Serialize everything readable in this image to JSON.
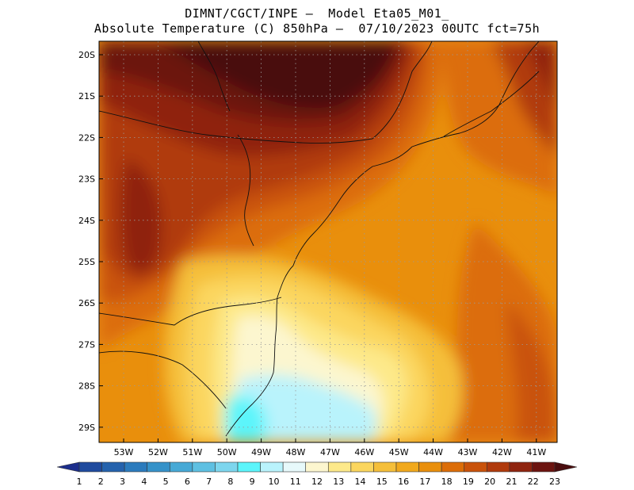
{
  "title": {
    "line1": "DIMNT/CGCT/INPE —  Model Eta05_M01_",
    "line2": "Absolute Temperature (C) 850hPa —  07/10/2023 00UTC fct=75h"
  },
  "map": {
    "lat_labels": [
      "20S",
      "21S",
      "22S",
      "23S",
      "24S",
      "25S",
      "26S",
      "27S",
      "28S",
      "29S"
    ],
    "lon_labels": [
      "53W",
      "52W",
      "51W",
      "50W",
      "49W",
      "48W",
      "47W",
      "46W",
      "45W",
      "44W",
      "43W",
      "42W",
      "41W"
    ]
  },
  "colorbar": {
    "labels": [
      "1",
      "2",
      "3",
      "4",
      "5",
      "6",
      "7",
      "8",
      "9",
      "10",
      "11",
      "12",
      "13",
      "14",
      "15",
      "16",
      "17",
      "18",
      "19",
      "20",
      "21",
      "22",
      "23"
    ],
    "colors": [
      "#1c2e8c",
      "#1f4a9e",
      "#2462ad",
      "#2b7bbd",
      "#3592c9",
      "#46a9d6",
      "#5ec0e2",
      "#7dd6ee",
      "#5bf5fb",
      "#b9f3fc",
      "#e7f9fb",
      "#fcf6cf",
      "#fde98a",
      "#fbd65e",
      "#f5bf3a",
      "#f1a91d",
      "#e98f0c",
      "#dc6d08",
      "#c9520a",
      "#b03a0c",
      "#8f240f",
      "#6c1410",
      "#4a0d0e"
    ]
  }
}
